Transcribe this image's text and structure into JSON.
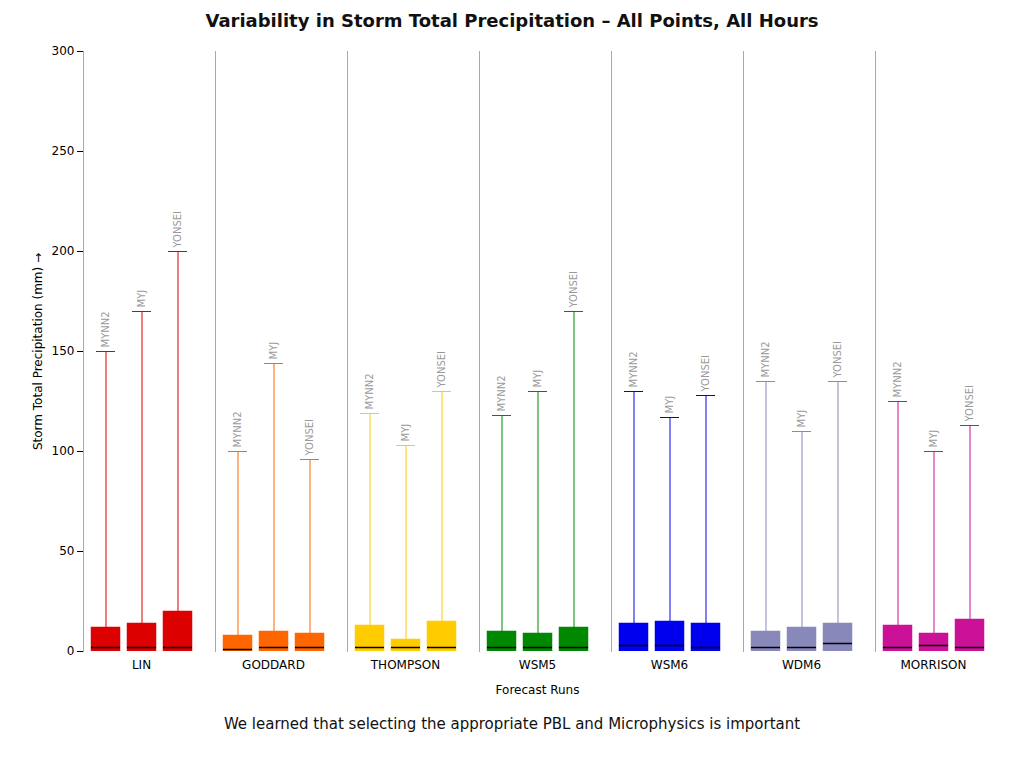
{
  "chart_data": {
    "type": "box",
    "title": "Variability in Storm Total Precipitation – All Points, All Hours",
    "subtitle": "We learned that selecting the appropriate PBL and Microphysics is important",
    "xlabel": "Forecast Runs",
    "ylabel": "Storm Total Precipitation (mm)",
    "categories": [
      "LIN",
      "GODDARD",
      "THOMPSON",
      "WSM5",
      "WSM6",
      "WDM6",
      "MORRISON"
    ],
    "colors": [
      "#dd0000",
      "#ff6600",
      "#ffcc00",
      "#008800",
      "#0000ee",
      "#8888bb",
      "#cc1199"
    ],
    "groups": [
      "MYNN2",
      "MYJ",
      "YONSEI"
    ],
    "boxes": [
      [
        {
          "q1": 0,
          "median": 2,
          "q3": 12,
          "whi": 150
        },
        {
          "q1": 0,
          "median": 2,
          "q3": 14,
          "whi": 170
        },
        {
          "q1": 0,
          "median": 2,
          "q3": 20,
          "whi": 200
        }
      ],
      [
        {
          "q1": 0,
          "median": 1,
          "q3": 8,
          "whi": 100
        },
        {
          "q1": 0,
          "median": 2,
          "q3": 10,
          "whi": 144
        },
        {
          "q1": 0,
          "median": 2,
          "q3": 9,
          "whi": 96
        }
      ],
      [
        {
          "q1": 0,
          "median": 2,
          "q3": 13,
          "whi": 119
        },
        {
          "q1": 0,
          "median": 2,
          "q3": 6,
          "whi": 103
        },
        {
          "q1": 0,
          "median": 2,
          "q3": 15,
          "whi": 130
        }
      ],
      [
        {
          "q1": 0,
          "median": 2,
          "q3": 10,
          "whi": 118
        },
        {
          "q1": 0,
          "median": 2,
          "q3": 9,
          "whi": 130
        },
        {
          "q1": 0,
          "median": 2,
          "q3": 12,
          "whi": 170
        }
      ],
      [
        {
          "q1": 0,
          "median": 3,
          "q3": 14,
          "whi": 130
        },
        {
          "q1": 0,
          "median": 3,
          "q3": 15,
          "whi": 117
        },
        {
          "q1": 0,
          "median": 2,
          "q3": 14,
          "whi": 128
        }
      ],
      [
        {
          "q1": 0,
          "median": 2,
          "q3": 10,
          "whi": 135
        },
        {
          "q1": 0,
          "median": 2,
          "q3": 12,
          "whi": 110
        },
        {
          "q1": 0,
          "median": 4,
          "q3": 14,
          "whi": 135
        }
      ],
      [
        {
          "q1": 0,
          "median": 2,
          "q3": 13,
          "whi": 125
        },
        {
          "q1": 0,
          "median": 3,
          "q3": 9,
          "whi": 100
        },
        {
          "q1": 0,
          "median": 2,
          "q3": 16,
          "whi": 113
        }
      ]
    ],
    "ylim": [
      0,
      300
    ],
    "yticks": [
      0,
      50,
      100,
      150,
      200,
      250,
      300
    ],
    "grid": false
  }
}
